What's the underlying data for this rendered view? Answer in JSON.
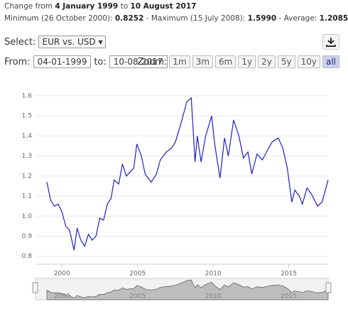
{
  "header": {
    "change_prefix": "Change from",
    "start_date": "4 January 1999",
    "change_mid": "to",
    "end_date": "10 August 2017",
    "min_label": "Minimum (26 October 2000):",
    "min_value": "0.8252",
    "max_label": "- Maximum (15 July 2008):",
    "max_value": "1.5990",
    "avg_label": "- Average:",
    "avg_value": "1.2085"
  },
  "controls": {
    "select_label": "Select:",
    "select_value": "EUR vs. USD",
    "from_label": "From:",
    "from_value": "04-01-1999",
    "to_label": "to:",
    "to_value": "10-08-2017",
    "zoom_label": "Zoom:",
    "zoom_buttons": [
      "1m",
      "3m",
      "6m",
      "1y",
      "2y",
      "5y",
      "10y",
      "all"
    ]
  },
  "chart_data": {
    "type": "line",
    "color": "#2020c8",
    "grid": true,
    "x": [
      1999.0,
      1999.25,
      1999.5,
      1999.75,
      2000.0,
      2000.25,
      2000.5,
      2000.8,
      2001.0,
      2001.25,
      2001.5,
      2001.75,
      2002.0,
      2002.25,
      2002.5,
      2002.75,
      2003.0,
      2003.25,
      2003.45,
      2003.75,
      2004.0,
      2004.25,
      2004.5,
      2004.75,
      2004.95,
      2005.25,
      2005.5,
      2005.9,
      2006.25,
      2006.5,
      2006.9,
      2007.25,
      2007.5,
      2007.9,
      2008.25,
      2008.55,
      2008.8,
      2008.95,
      2009.2,
      2009.5,
      2009.9,
      2010.1,
      2010.45,
      2010.75,
      2011.0,
      2011.35,
      2011.7,
      2012.0,
      2012.3,
      2012.55,
      2012.9,
      2013.25,
      2013.6,
      2013.9,
      2014.3,
      2014.6,
      2014.9,
      2015.2,
      2015.4,
      2015.7,
      2015.9,
      2016.2,
      2016.5,
      2016.9,
      2017.2,
      2017.6
    ],
    "values": [
      1.17,
      1.08,
      1.05,
      1.06,
      1.02,
      0.95,
      0.93,
      0.83,
      0.94,
      0.88,
      0.85,
      0.91,
      0.88,
      0.9,
      0.99,
      0.98,
      1.06,
      1.09,
      1.18,
      1.16,
      1.26,
      1.2,
      1.22,
      1.24,
      1.36,
      1.3,
      1.21,
      1.17,
      1.21,
      1.28,
      1.32,
      1.34,
      1.37,
      1.47,
      1.57,
      1.59,
      1.27,
      1.4,
      1.27,
      1.4,
      1.5,
      1.36,
      1.19,
      1.39,
      1.3,
      1.48,
      1.4,
      1.29,
      1.32,
      1.21,
      1.31,
      1.28,
      1.33,
      1.37,
      1.39,
      1.34,
      1.24,
      1.07,
      1.13,
      1.1,
      1.06,
      1.14,
      1.11,
      1.05,
      1.07,
      1.18
    ],
    "xlim": [
      1998.25,
      2017.6
    ],
    "xticks": [
      2000,
      2005,
      2010,
      2015
    ],
    "ylim": [
      0.76,
      1.66
    ],
    "yticks": [
      0.8,
      0.9,
      {
        "value": 1,
        "label": "1.0"
      },
      1.1,
      1.2,
      1.3,
      1.4,
      1.5,
      1.6
    ]
  }
}
